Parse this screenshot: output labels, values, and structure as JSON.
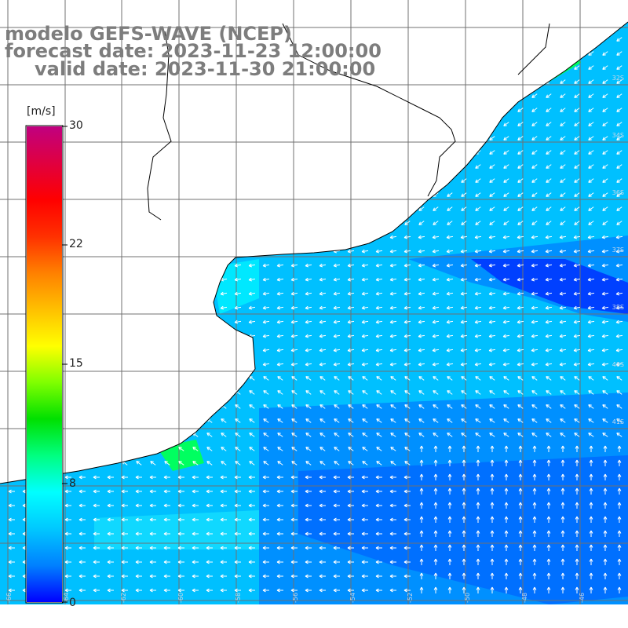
{
  "title": {
    "model": "modelo GEFS-WAVE (NCEP)",
    "forecast": "forecast date: 2023-11-23 12:00:00",
    "valid": "valid date: 2023-11-30 21:00:00"
  },
  "colorbar": {
    "unit": "[m/s]",
    "ticks": [
      "30",
      "22",
      "15",
      "8",
      "0"
    ],
    "colors": [
      "#0000ff",
      "#0080ff",
      "#00c8ff",
      "#00ffff",
      "#00ff80",
      "#00e000",
      "#80ff00",
      "#ffff00",
      "#ffc000",
      "#ff8000",
      "#ff3000",
      "#ff0000",
      "#e00040",
      "#c00080"
    ]
  },
  "map": {
    "field": "wind speed",
    "ocean_colors": {
      "deep": "#0040ff",
      "mid": "#0090ff",
      "light": "#00c0ff",
      "cyan": "#00e8ff",
      "green": "#00ff60"
    },
    "land_color": "#ffffff",
    "grid_color": "#707070",
    "lon_labels": [
      "-66",
      "-64",
      "-62",
      "-60",
      "-58",
      "-56",
      "-54",
      "-52",
      "-50",
      "-48",
      "-46"
    ],
    "lat_labels": [
      "32S",
      "34S",
      "36S",
      "37S",
      "38S",
      "40S",
      "41S"
    ]
  }
}
